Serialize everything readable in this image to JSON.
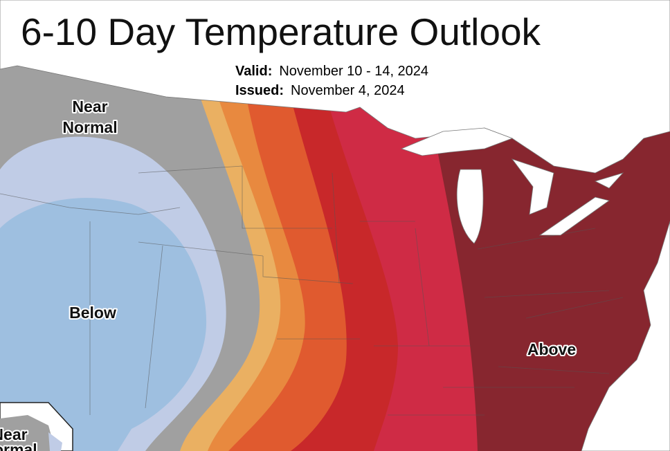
{
  "header": {
    "title": "6-10 Day Temperature Outlook",
    "valid": {
      "label": "Valid:",
      "date": "November 10 - 14, 2024"
    },
    "issued": {
      "label": "Issued:",
      "date": "November 4, 2024"
    }
  },
  "regions": [
    {
      "lines": [
        "Near",
        "Normal"
      ]
    },
    {
      "lines": [
        "Below"
      ]
    },
    {
      "lines": [
        "Above"
      ]
    },
    {
      "lines": [
        "Near",
        "Normal"
      ]
    }
  ]
}
